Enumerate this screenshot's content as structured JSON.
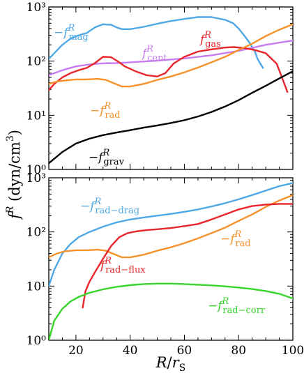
{
  "chart_data": [
    {
      "type": "line",
      "panel": "top",
      "yscale": "log",
      "xlim": [
        10,
        100
      ],
      "ylim": [
        1,
        1000
      ],
      "xlabel": "",
      "ylabel": "",
      "ytick_labels": [
        "10⁰",
        "10¹",
        "10²",
        "10³"
      ],
      "xtick_labels": [],
      "series": [
        {
          "label": "−f^R_mag",
          "color": "#4fa8e6",
          "points": [
            [
              10,
              110
            ],
            [
              12,
              140
            ],
            [
              15,
              200
            ],
            [
              18,
              260
            ],
            [
              21,
              300
            ],
            [
              24,
              330
            ],
            [
              27,
              420
            ],
            [
              30,
              480
            ],
            [
              33,
              470
            ],
            [
              35,
              420
            ],
            [
              37,
              390
            ],
            [
              40,
              390
            ],
            [
              45,
              430
            ],
            [
              50,
              490
            ],
            [
              55,
              550
            ],
            [
              60,
              600
            ],
            [
              65,
              650
            ],
            [
              70,
              650
            ],
            [
              75,
              580
            ],
            [
              78,
              500
            ],
            [
              80,
              400
            ],
            [
              82,
              300
            ],
            [
              84,
              220
            ],
            [
              86,
              150
            ],
            [
              87,
              110
            ],
            [
              88,
              90
            ],
            [
              89,
              75
            ]
          ]
        },
        {
          "label": "f^R_cent",
          "color": "#c77cf0",
          "points": [
            [
              10,
              55
            ],
            [
              15,
              68
            ],
            [
              20,
              80
            ],
            [
              25,
              87
            ],
            [
              30,
              91
            ],
            [
              35,
              92
            ],
            [
              40,
              95
            ],
            [
              50,
              102
            ],
            [
              60,
              112
            ],
            [
              70,
              128
            ],
            [
              80,
              155
            ],
            [
              90,
              200
            ],
            [
              100,
              240
            ]
          ]
        },
        {
          "label": "f^R_gas",
          "color": "#e8262b",
          "points": [
            [
              10,
              29
            ],
            [
              12,
              38
            ],
            [
              15,
              50
            ],
            [
              18,
              60
            ],
            [
              21,
              68
            ],
            [
              24,
              75
            ],
            [
              27,
              92
            ],
            [
              30,
              120
            ],
            [
              33,
              118
            ],
            [
              36,
              95
            ],
            [
              38,
              80
            ],
            [
              42,
              65
            ],
            [
              46,
              55
            ],
            [
              50,
              52
            ],
            [
              53,
              60
            ],
            [
              56,
              90
            ],
            [
              60,
              120
            ],
            [
              65,
              150
            ],
            [
              70,
              165
            ],
            [
              75,
              178
            ],
            [
              78,
              182
            ],
            [
              82,
              175
            ],
            [
              86,
              160
            ],
            [
              90,
              140
            ],
            [
              94,
              90
            ],
            [
              96,
              50
            ],
            [
              98,
              27
            ]
          ]
        },
        {
          "label": "−f^R_rad",
          "color": "#f5922b",
          "points": [
            [
              10,
              38
            ],
            [
              13,
              42
            ],
            [
              16,
              44
            ],
            [
              20,
              46
            ],
            [
              24,
              46
            ],
            [
              28,
              47
            ],
            [
              31,
              45
            ],
            [
              34,
              39
            ],
            [
              37,
              34
            ],
            [
              40,
              34
            ],
            [
              45,
              38
            ],
            [
              50,
              45
            ],
            [
              55,
              52
            ],
            [
              60,
              62
            ],
            [
              65,
              76
            ],
            [
              70,
              95
            ],
            [
              75,
              120
            ],
            [
              80,
              160
            ],
            [
              85,
              210
            ],
            [
              90,
              290
            ],
            [
              95,
              380
            ],
            [
              100,
              480
            ]
          ]
        },
        {
          "label": "−f^R_grav",
          "color": "#000000",
          "points": [
            [
              10,
              1.3
            ],
            [
              15,
              2.1
            ],
            [
              20,
              3.0
            ],
            [
              25,
              3.7
            ],
            [
              30,
              4.3
            ],
            [
              35,
              4.8
            ],
            [
              40,
              5.3
            ],
            [
              45,
              5.9
            ],
            [
              50,
              6.5
            ],
            [
              55,
              7.2
            ],
            [
              60,
              8.1
            ],
            [
              65,
              9.5
            ],
            [
              70,
              11.5
            ],
            [
              75,
              14.5
            ],
            [
              80,
              19
            ],
            [
              85,
              26
            ],
            [
              90,
              35
            ],
            [
              95,
              48
            ],
            [
              100,
              65
            ]
          ]
        }
      ],
      "annotations": [
        {
          "series": "−f^R_mag",
          "symbol": "−f",
          "sup": "R",
          "sub": "mag"
        },
        {
          "series": "f^R_cent",
          "symbol": "f",
          "sup": "R",
          "sub": "cent"
        },
        {
          "series": "f^R_gas",
          "symbol": "f",
          "sup": "R",
          "sub": "gas"
        },
        {
          "series": "−f^R_rad",
          "symbol": "−f",
          "sup": "R",
          "sub": "rad"
        },
        {
          "series": "−f^R_grav",
          "symbol": "−f",
          "sup": "R",
          "sub": "grav"
        }
      ]
    },
    {
      "type": "line",
      "panel": "bottom",
      "yscale": "log",
      "xlim": [
        10,
        100
      ],
      "ylim": [
        1,
        1000
      ],
      "xlabel": "R/r_S",
      "ylabel": "f^R (dyn/cm³)",
      "ytick_labels": [
        "10⁰",
        "10¹",
        "10²",
        "10³"
      ],
      "xtick_labels": [
        "20",
        "40",
        "60",
        "80",
        "100"
      ],
      "series": [
        {
          "label": "−f^R_rad−drag",
          "color": "#4fa8e6",
          "points": [
            [
              10,
              10
            ],
            [
              12,
              20
            ],
            [
              15,
              40
            ],
            [
              18,
              60
            ],
            [
              21,
              80
            ],
            [
              25,
              100
            ],
            [
              30,
              125
            ],
            [
              35,
              150
            ],
            [
              40,
              170
            ],
            [
              45,
              185
            ],
            [
              50,
              200
            ],
            [
              55,
              215
            ],
            [
              60,
              235
            ],
            [
              65,
              260
            ],
            [
              70,
              295
            ],
            [
              75,
              340
            ],
            [
              80,
              400
            ],
            [
              85,
              480
            ],
            [
              90,
              580
            ],
            [
              95,
              700
            ],
            [
              100,
              800
            ]
          ]
        },
        {
          "label": "−f^R_rad",
          "color": "#f5922b",
          "points": [
            [
              10,
              34
            ],
            [
              13,
              40
            ],
            [
              16,
              44
            ],
            [
              20,
              46
            ],
            [
              24,
              46
            ],
            [
              28,
              47
            ],
            [
              31,
              45
            ],
            [
              34,
              39
            ],
            [
              37,
              34
            ],
            [
              40,
              34
            ],
            [
              45,
              38
            ],
            [
              50,
              45
            ],
            [
              55,
              52
            ],
            [
              60,
              62
            ],
            [
              65,
              76
            ],
            [
              70,
              95
            ],
            [
              75,
              120
            ],
            [
              80,
              160
            ],
            [
              85,
              210
            ],
            [
              90,
              290
            ],
            [
              95,
              380
            ],
            [
              100,
              480
            ]
          ]
        },
        {
          "label": "f^R_rad−flux",
          "color": "#e8262b",
          "points": [
            [
              22.5,
              4
            ],
            [
              23.5,
              8
            ],
            [
              25,
              12
            ],
            [
              27,
              18
            ],
            [
              30,
              32
            ],
            [
              33,
              55
            ],
            [
              36,
              80
            ],
            [
              39,
              95
            ],
            [
              42,
              102
            ],
            [
              46,
              108
            ],
            [
              50,
              112
            ],
            [
              55,
              118
            ],
            [
              60,
              128
            ],
            [
              65,
              140
            ],
            [
              70,
              170
            ],
            [
              75,
              210
            ],
            [
              80,
              260
            ],
            [
              85,
              300
            ],
            [
              90,
              320
            ],
            [
              95,
              330
            ],
            [
              100,
              330
            ]
          ]
        },
        {
          "label": "−f^R_rad−corr",
          "color": "#36d52b",
          "points": [
            [
              10,
              1
            ],
            [
              12,
              2.3
            ],
            [
              15,
              3.8
            ],
            [
              18,
              5.2
            ],
            [
              21,
              6.3
            ],
            [
              25,
              7.5
            ],
            [
              30,
              8.7
            ],
            [
              35,
              9.7
            ],
            [
              40,
              10.4
            ],
            [
              45,
              10.9
            ],
            [
              50,
              11.1
            ],
            [
              55,
              11.1
            ],
            [
              60,
              10.9
            ],
            [
              65,
              10.6
            ],
            [
              70,
              10.3
            ],
            [
              75,
              9.9
            ],
            [
              80,
              9.4
            ],
            [
              85,
              8.8
            ],
            [
              90,
              8.1
            ],
            [
              95,
              7.2
            ],
            [
              100,
              5.9
            ]
          ]
        }
      ],
      "annotations": [
        {
          "series": "−f^R_rad−drag",
          "symbol": "−f",
          "sup": "R",
          "sub": "rad−drag"
        },
        {
          "series": "−f^R_rad",
          "symbol": "−f",
          "sup": "R",
          "sub": "rad"
        },
        {
          "series": "f^R_rad−flux",
          "symbol": "f",
          "sup": "R",
          "sub": "rad−flux"
        },
        {
          "series": "−f^R_rad−corr",
          "symbol": "−f",
          "sup": "R",
          "sub": "rad−corr"
        }
      ]
    }
  ],
  "axis_titles": {
    "x_main": "R",
    "x_slash": "/",
    "x_sym": "r",
    "x_sub": "S",
    "y_main": "f",
    "y_sup": "R",
    "y_units": " (dyn/cm",
    "y_units_sup": "3",
    "y_close": ")"
  }
}
